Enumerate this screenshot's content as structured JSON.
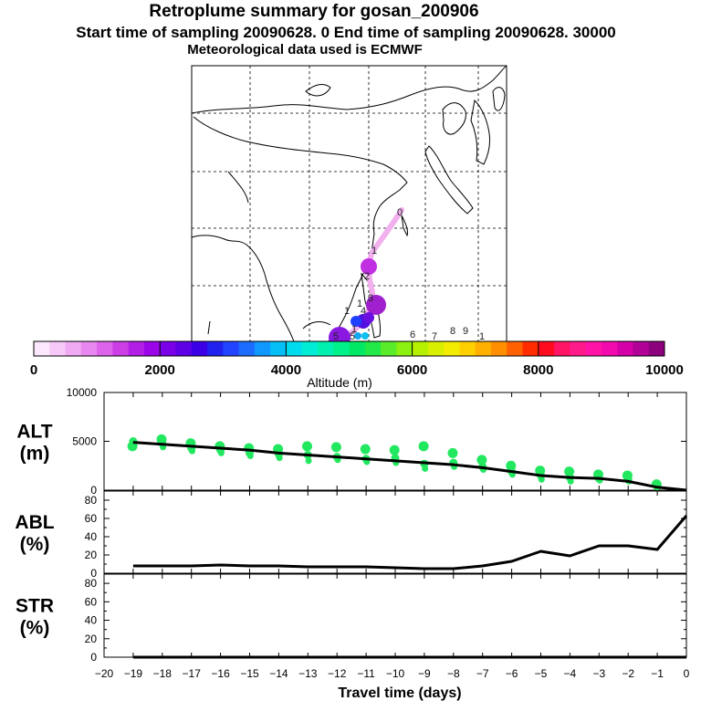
{
  "header": {
    "title": "Retroplume summary for gosan_200906",
    "sampling": "Start time of sampling 20090628.     0     End time of sampling 20090628. 30000",
    "met": "Meteorological data used is ECMWF"
  },
  "colorbar": {
    "label": "Altitude (m)",
    "ticks": [
      "0",
      "2000",
      "4000",
      "6000",
      "8000",
      "10000"
    ],
    "colors": [
      "#fde7fd",
      "#f7c9f8",
      "#f0a9f3",
      "#e787ef",
      "#dd63ea",
      "#cc3ee6",
      "#b31ee6",
      "#9b06e8",
      "#7a00e8",
      "#5d00e6",
      "#3c00e6",
      "#2222ee",
      "#2244ff",
      "#1c6cff",
      "#1198ff",
      "#04bff6",
      "#00dcee",
      "#00ecd4",
      "#00f0b0",
      "#00f08a",
      "#00e864",
      "#22e848",
      "#58ec2a",
      "#8cf010",
      "#b4f000",
      "#d8f000",
      "#f4ec00",
      "#ffd000",
      "#ffb000",
      "#ff8e00",
      "#ff6000",
      "#ff2c00",
      "#ff0a1e",
      "#ff1466",
      "#ff1a8a",
      "#ff12a6",
      "#f20aae",
      "#d400a8",
      "#b00096",
      "#8c007e"
    ]
  },
  "map": {
    "point_labels": [
      "0",
      "1",
      "2",
      "3",
      "4",
      "5",
      "5",
      "6",
      "7",
      "8",
      "9",
      "1",
      "1",
      "1",
      "1"
    ]
  },
  "colors": {
    "dots": "#22e860",
    "line": "#000000"
  },
  "chart_data": [
    {
      "type": "scatter",
      "name": "ALT",
      "ylabel": "ALT\n(m)",
      "ylim": [
        0,
        10000
      ],
      "yticks": [
        "0",
        "5000",
        "10000"
      ],
      "x": [
        -19,
        -18,
        -17,
        -16,
        -15,
        -14,
        -13,
        -12,
        -11,
        -10,
        -9,
        -8,
        -7,
        -6,
        -5,
        -4,
        -3,
        -2,
        -1,
        0
      ],
      "mean_line": [
        4900,
        4700,
        4500,
        4300,
        4100,
        3800,
        3600,
        3400,
        3200,
        3000,
        2800,
        2600,
        2300,
        1900,
        1500,
        1300,
        1200,
        900,
        300,
        0
      ],
      "clusters": [
        {
          "x": -19,
          "values": [
            4500,
            5000,
            4700
          ]
        },
        {
          "x": -18,
          "values": [
            5200,
            4800,
            4400
          ]
        },
        {
          "x": -17,
          "values": [
            4800,
            4300,
            4000
          ]
        },
        {
          "x": -16,
          "values": [
            4500,
            4100,
            3800
          ]
        },
        {
          "x": -15,
          "values": [
            4300,
            3800,
            3500
          ]
        },
        {
          "x": -14,
          "values": [
            4200,
            3700,
            3300
          ]
        },
        {
          "x": -13,
          "values": [
            4500,
            3600,
            3000
          ]
        },
        {
          "x": -12,
          "values": [
            4400,
            3400,
            3100
          ]
        },
        {
          "x": -11,
          "values": [
            4200,
            3200,
            2900
          ]
        },
        {
          "x": -10,
          "values": [
            4100,
            3300,
            2800
          ]
        },
        {
          "x": -9,
          "values": [
            4500,
            2700,
            2200
          ]
        },
        {
          "x": -8,
          "values": [
            3800,
            2800,
            2400
          ]
        },
        {
          "x": -7,
          "values": [
            3100,
            2400,
            2100
          ]
        },
        {
          "x": -6,
          "values": [
            2500,
            1900,
            1600
          ]
        },
        {
          "x": -5,
          "values": [
            2000,
            1500,
            1100
          ]
        },
        {
          "x": -4,
          "values": [
            1900,
            1300,
            900
          ]
        },
        {
          "x": -3,
          "values": [
            1600,
            1200,
            1000
          ]
        },
        {
          "x": -2,
          "values": [
            1500,
            1100,
            900
          ]
        },
        {
          "x": -1,
          "values": [
            600,
            400
          ]
        }
      ]
    },
    {
      "type": "line",
      "name": "ABL",
      "ylabel": "ABL\n(%)",
      "ylim": [
        0,
        90
      ],
      "yticks": [
        "0",
        "20",
        "40",
        "60",
        "80"
      ],
      "x": [
        -19,
        -18,
        -17,
        -16,
        -15,
        -14,
        -13,
        -12,
        -11,
        -10,
        -9,
        -8,
        -7,
        -6,
        -5,
        -4,
        -3,
        -2,
        -1,
        0
      ],
      "values": [
        8,
        8,
        8,
        9,
        8,
        8,
        7,
        7,
        7,
        6,
        5,
        5,
        8,
        13,
        24,
        19,
        30,
        30,
        26,
        63
      ]
    },
    {
      "type": "line",
      "name": "STR",
      "ylabel": "STR\n(%)",
      "ylim": [
        0,
        90
      ],
      "yticks": [
        "0",
        "20",
        "40",
        "60",
        "80"
      ],
      "x": [
        -19,
        -18,
        -17,
        -16,
        -15,
        -14,
        -13,
        -12,
        -11,
        -10,
        -9,
        -8,
        -7,
        -6,
        -5,
        -4,
        -3,
        -2,
        -1,
        0
      ],
      "values": [
        0,
        0,
        0,
        0,
        0,
        0,
        0,
        0,
        0,
        0,
        0,
        0,
        0,
        0,
        0,
        0,
        0,
        0,
        0,
        0
      ],
      "xlabel": "Travel time (days)",
      "xticks": [
        "−20",
        "−19",
        "−18",
        "−17",
        "−16",
        "−15",
        "−14",
        "−13",
        "−12",
        "−11",
        "−10",
        "−9",
        "−8",
        "−7",
        "−6",
        "−5",
        "−4",
        "−3",
        "−2",
        "−1",
        "0"
      ]
    }
  ]
}
